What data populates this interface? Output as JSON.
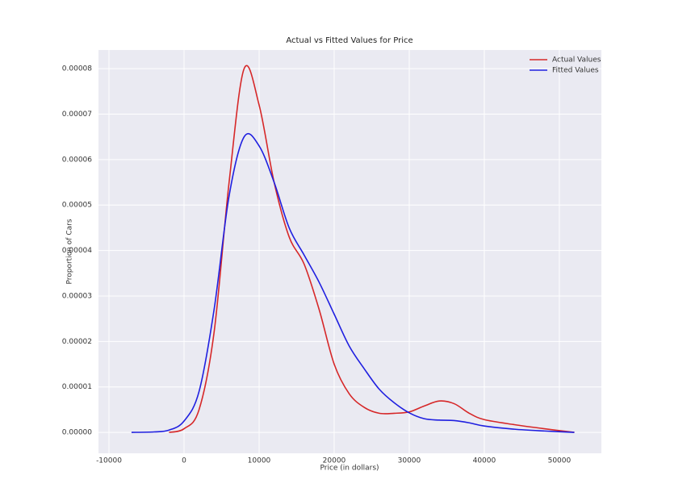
{
  "chart_data": {
    "type": "line",
    "title": "Actual vs Fitted Values for Price",
    "x_label": "Price (in dollars)",
    "y_label": "Proportion of Cars",
    "x": [
      -7000,
      -4000,
      -2000,
      0,
      2000,
      4000,
      6000,
      8000,
      10000,
      12000,
      14000,
      16000,
      18000,
      20000,
      22000,
      24000,
      26000,
      28000,
      30000,
      32000,
      34000,
      36000,
      38000,
      40000,
      44000,
      48000,
      52000
    ],
    "series": [
      {
        "name": "Actual Values",
        "color": "#d62728",
        "values": [
          null,
          null,
          0,
          8e-07,
          5e-06,
          2.2e-05,
          5.5e-05,
          8e-05,
          7.2e-05,
          5.5e-05,
          4.3e-05,
          3.7e-05,
          2.7e-05,
          1.5e-05,
          8.5e-06,
          5.5e-06,
          4.2e-06,
          4.2e-06,
          4.5e-06,
          5.8e-06,
          6.9e-06,
          6.3e-06,
          4.2e-06,
          2.8e-06,
          1.7e-06,
          8e-07,
          0
        ]
      },
      {
        "name": "Fitted Values",
        "color": "#1f1fe0",
        "values": [
          0,
          1e-07,
          5e-07,
          2.5e-06,
          9e-06,
          2.7e-05,
          5.2e-05,
          6.5e-05,
          6.3e-05,
          5.5e-05,
          4.5e-05,
          3.9e-05,
          3.3e-05,
          2.6e-05,
          1.9e-05,
          1.4e-05,
          9.5e-06,
          6.5e-06,
          4.3e-06,
          3e-06,
          2.7e-06,
          2.6e-06,
          2.1e-06,
          1.4e-06,
          7e-07,
          3e-07,
          0
        ]
      }
    ],
    "xlim": [
      -11400,
      55600
    ],
    "ylim": [
      -4.6e-06,
      8.41e-05
    ],
    "xticks": [
      -10000,
      0,
      10000,
      20000,
      30000,
      40000,
      50000
    ],
    "yticks": [
      {
        "value": 0,
        "label": "0.00000"
      },
      {
        "value": 1e-05,
        "label": "0.00001"
      },
      {
        "value": 2e-05,
        "label": "0.00002"
      },
      {
        "value": 3e-05,
        "label": "0.00003"
      },
      {
        "value": 4e-05,
        "label": "0.00004"
      },
      {
        "value": 5e-05,
        "label": "0.00005"
      },
      {
        "value": 6e-05,
        "label": "0.00006"
      },
      {
        "value": 7e-05,
        "label": "0.00007"
      },
      {
        "value": 8e-05,
        "label": "0.00008"
      }
    ],
    "grid": true,
    "legend": "upper right"
  }
}
